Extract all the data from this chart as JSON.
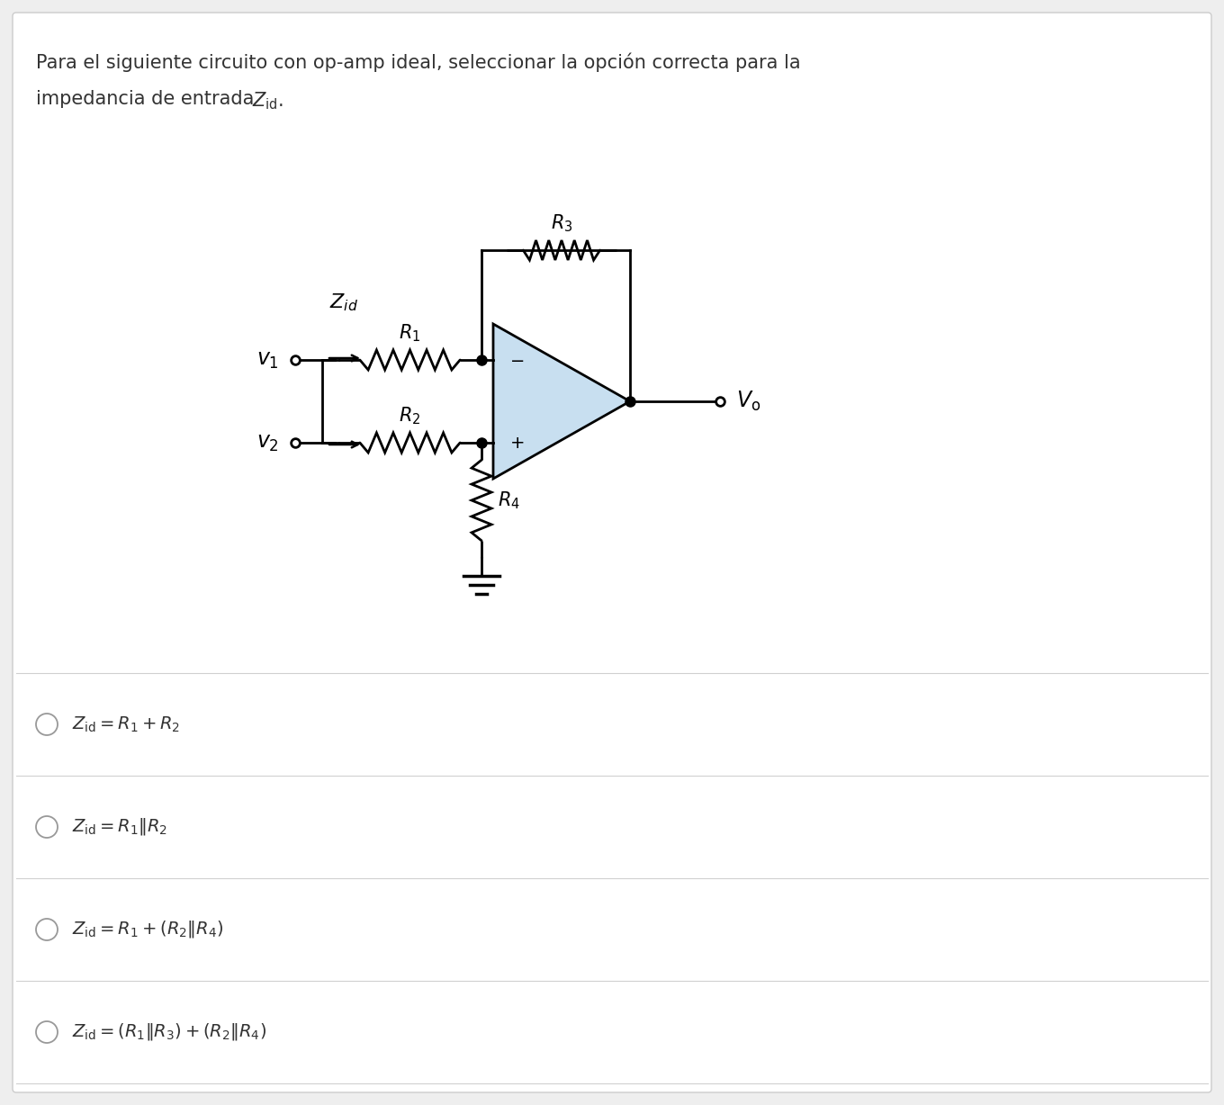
{
  "bg_color": "#eeeeee",
  "panel_color": "#ffffff",
  "circuit_color": "#000000",
  "opamp_fill": "#c8dff0",
  "line_color": "#cccccc",
  "title_line1": "Para el siguiente circuito con op-amp ideal, seleccionar la opción correcta para la",
  "title_line2_pre": "impedancia de entrada ",
  "title_line2_sub": "Z",
  "title_line2_subscript": "id",
  "title_line2_post": ".",
  "options_math": [
    "Z_{id} = R_1 + R_2",
    "Z_{id} = R_1||R_2",
    "Z_{id} = R_1 + (R_2||R_4)",
    "Z_{id} = (R_1||R_3) + (R_2||R_4)"
  ]
}
